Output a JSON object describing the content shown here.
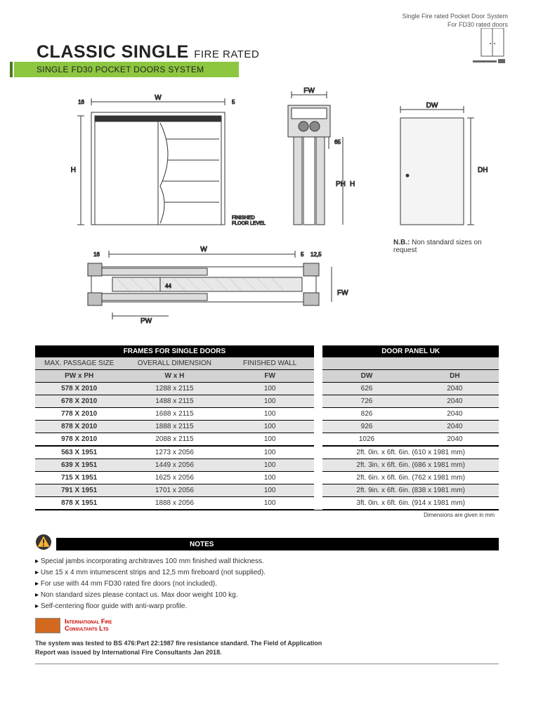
{
  "header": {
    "line1": "Single Fire rated Pocket Door System",
    "line2": "For FD30 rated doors"
  },
  "title": {
    "main": "CLASSIC SINGLE",
    "sub": "FIRE RATED"
  },
  "greenBar": "SINGLE FD30 POCKET DOORS SYSTEM",
  "diagram": {
    "labels": {
      "w": "W",
      "h": "H",
      "fw": "FW",
      "ph": "PH",
      "pw": "PW",
      "dw": "DW",
      "dh": "DH",
      "n16": "16",
      "n5": "5",
      "n65": "65",
      "n125": "12,5",
      "n44": "44",
      "floor": "FINISHED\nFLOOR LEVEL"
    }
  },
  "nb": {
    "bold": "N.B.:",
    "text": " Non standard sizes on request"
  },
  "table": {
    "header1": {
      "left": "FRAMES FOR SINGLE DOORS",
      "right": "DOOR PANEL UK"
    },
    "sub1": {
      "c1": "MAX. PASSAGE SIZE",
      "c2": "OVERALL DIMENSION",
      "c3": "FINISHED WALL",
      "c4": "",
      "c5": ""
    },
    "sub2": {
      "c1": "PW x PH",
      "c2": "W x H",
      "c3": "FW",
      "c4": "DW",
      "c5": "DH"
    },
    "rows1": [
      {
        "c1": "578 X 2010",
        "c2": "1288 x 2115",
        "c3": "100",
        "c4": "626",
        "c5": "2040",
        "grey": true
      },
      {
        "c1": "678 X 2010",
        "c2": "1488 x 2115",
        "c3": "100",
        "c4": "726",
        "c5": "2040",
        "grey": true
      },
      {
        "c1": "778 X 2010",
        "c2": "1688 x 2115",
        "c3": "100",
        "c4": "826",
        "c5": "2040",
        "grey": false
      },
      {
        "c1": "878 X 2010",
        "c2": "1888 x 2115",
        "c3": "100",
        "c4": "926",
        "c5": "2040",
        "grey": true
      },
      {
        "c1": "978 X 2010",
        "c2": "2088 x 2115",
        "c3": "100",
        "c4": "1026",
        "c5": "2040",
        "grey": false
      }
    ],
    "rows2": [
      {
        "c1": "563 X 1951",
        "c2": "1273 x 2056",
        "c3": "100",
        "c45": "2ft. 0in. x 6ft. 6in. (610 x 1981 mm)",
        "grey": false
      },
      {
        "c1": "639 X 1951",
        "c2": "1449 x 2056",
        "c3": "100",
        "c45": "2ft. 3in. x 6ft. 6in. (686 x 1981 mm)",
        "grey": true
      },
      {
        "c1": "715 X 1951",
        "c2": "1625 x 2056",
        "c3": "100",
        "c45": "2ft. 6in. x 6ft. 6in. (762 x 1981 mm)",
        "grey": false
      },
      {
        "c1": "791 X 1951",
        "c2": "1701 x 2056",
        "c3": "100",
        "c45": "2ft. 9in. x 6ft. 6in. (838 x 1981 mm)",
        "grey": true
      },
      {
        "c1": "878 X 1951",
        "c2": "1888 x 2056",
        "c3": "100",
        "c45": "3ft. 0in. x 6ft. 6in. (914 x 1981 mm)",
        "grey": false
      }
    ],
    "footnote": "Dimensions are given in mm"
  },
  "notes": {
    "title": "NOTES",
    "items": [
      "Special jambs incorporating architraves 100 mm finished wall thickness.",
      "Use 15 x 4 mm intumescent strips and 12,5 mm fireboard (not supplied).",
      "For use with 44 mm FD30 rated fire doors (not included).",
      "Non standard sizes please contact us. Max door weight 100 kg.",
      "Self-centering floor guide with anti-warp profile."
    ]
  },
  "cert": {
    "logoText": "International Fire\nConsultants Ltd",
    "statement": "The system was tested to BS 476:Part 22:1987 fire resistance standard. The Field of Application Report was issued by International Fire Consultants Jan 2018."
  },
  "colors": {
    "green": "#8dc63f",
    "darkGreen": "#4a7a1e",
    "black": "#000000",
    "grey": "#d3d3d3",
    "lightGrey": "#e6e6e6"
  }
}
